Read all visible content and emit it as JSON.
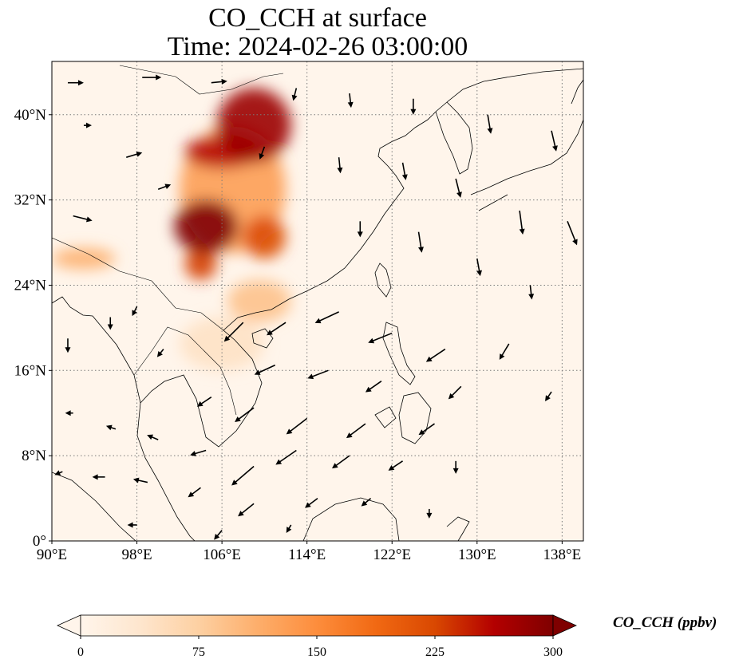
{
  "title": {
    "line1": "CO_CCH at surface",
    "line2": "Time: 2024-02-26 03:00:00"
  },
  "map": {
    "lon_range": [
      90,
      140
    ],
    "lat_range": [
      0,
      45
    ],
    "lon_ticks": [
      {
        "value": 90,
        "label": "90°E"
      },
      {
        "value": 98,
        "label": "98°E"
      },
      {
        "value": 106,
        "label": "106°E"
      },
      {
        "value": 114,
        "label": "114°E"
      },
      {
        "value": 122,
        "label": "122°E"
      },
      {
        "value": 130,
        "label": "130°E"
      },
      {
        "value": 138,
        "label": "138°E"
      }
    ],
    "lat_ticks": [
      {
        "value": 0,
        "label": "0°"
      },
      {
        "value": 8,
        "label": "8°N"
      },
      {
        "value": 16,
        "label": "16°N"
      },
      {
        "value": 24,
        "label": "24°N"
      },
      {
        "value": 32,
        "label": "32°N"
      },
      {
        "value": 40,
        "label": "40°N"
      }
    ],
    "gridlines": true,
    "background_color": "#fff5eb",
    "colormap": "OrRd",
    "plumes": [
      {
        "lon": 109.0,
        "lat": 39.0,
        "rlon": 3.5,
        "rlat": 3.5,
        "value": 280
      },
      {
        "lon": 106.0,
        "lat": 36.5,
        "rlon": 3.5,
        "rlat": 1.5,
        "value": 260
      },
      {
        "lon": 104.5,
        "lat": 29.5,
        "rlon": 3.0,
        "rlat": 2.5,
        "value": 300
      },
      {
        "lon": 110.0,
        "lat": 28.5,
        "rlon": 2.0,
        "rlat": 2.0,
        "value": 220
      },
      {
        "lon": 107.0,
        "lat": 33.0,
        "rlon": 5.0,
        "rlat": 6.0,
        "value": 130
      },
      {
        "lon": 104.0,
        "lat": 26.0,
        "rlon": 1.5,
        "rlat": 1.5,
        "value": 230
      },
      {
        "lon": 109.5,
        "lat": 22.5,
        "rlon": 3.0,
        "rlat": 2.0,
        "value": 90
      },
      {
        "lon": 93.0,
        "lat": 26.5,
        "rlon": 3.0,
        "rlat": 1.0,
        "value": 110
      },
      {
        "lon": 106.0,
        "lat": 18.5,
        "rlon": 4.0,
        "rlat": 2.5,
        "value": 45
      }
    ],
    "wind_vectors": [
      {
        "lon": 91.5,
        "lat": 43.0,
        "u": 1.0,
        "v": 0.0
      },
      {
        "lon": 98.5,
        "lat": 43.5,
        "u": 1.2,
        "v": 0.0
      },
      {
        "lon": 105.0,
        "lat": 43.0,
        "u": 1.0,
        "v": 0.1
      },
      {
        "lon": 113.0,
        "lat": 42.5,
        "u": -0.2,
        "v": -0.8
      },
      {
        "lon": 118.0,
        "lat": 42.0,
        "u": 0.1,
        "v": -0.9
      },
      {
        "lon": 124.0,
        "lat": 41.5,
        "u": 0.0,
        "v": -1.0
      },
      {
        "lon": 131.0,
        "lat": 40.0,
        "u": 0.2,
        "v": -1.2
      },
      {
        "lon": 137.0,
        "lat": 38.5,
        "u": 0.3,
        "v": -1.3
      },
      {
        "lon": 93.0,
        "lat": 39.0,
        "u": 0.5,
        "v": 0.0
      },
      {
        "lon": 97.0,
        "lat": 36.0,
        "u": 1.0,
        "v": 0.3
      },
      {
        "lon": 100.0,
        "lat": 33.0,
        "u": 0.8,
        "v": 0.3
      },
      {
        "lon": 110.0,
        "lat": 37.0,
        "u": -0.3,
        "v": -0.8
      },
      {
        "lon": 117.0,
        "lat": 36.0,
        "u": 0.1,
        "v": -1.0
      },
      {
        "lon": 123.0,
        "lat": 35.5,
        "u": 0.2,
        "v": -1.1
      },
      {
        "lon": 128.0,
        "lat": 34.0,
        "u": 0.3,
        "v": -1.2
      },
      {
        "lon": 134.0,
        "lat": 31.0,
        "u": 0.2,
        "v": -1.5
      },
      {
        "lon": 138.5,
        "lat": 30.0,
        "u": 0.6,
        "v": -1.5
      },
      {
        "lon": 119.0,
        "lat": 30.0,
        "u": 0.0,
        "v": -1.0
      },
      {
        "lon": 124.5,
        "lat": 29.0,
        "u": 0.2,
        "v": -1.3
      },
      {
        "lon": 130.0,
        "lat": 26.5,
        "u": 0.2,
        "v": -1.1
      },
      {
        "lon": 135.0,
        "lat": 24.0,
        "u": 0.1,
        "v": -0.9
      },
      {
        "lon": 92.0,
        "lat": 30.5,
        "u": 1.2,
        "v": -0.3
      },
      {
        "lon": 95.5,
        "lat": 21.0,
        "u": 0.0,
        "v": -0.8
      },
      {
        "lon": 91.5,
        "lat": 19.0,
        "u": 0.0,
        "v": -0.9
      },
      {
        "lon": 98.0,
        "lat": 22.0,
        "u": -0.3,
        "v": -0.6
      },
      {
        "lon": 100.5,
        "lat": 18.0,
        "u": -0.4,
        "v": -0.5
      },
      {
        "lon": 108.0,
        "lat": 20.5,
        "u": -1.2,
        "v": -1.2
      },
      {
        "lon": 112.0,
        "lat": 20.5,
        "u": -1.2,
        "v": -0.8
      },
      {
        "lon": 117.0,
        "lat": 21.5,
        "u": -1.5,
        "v": -0.7
      },
      {
        "lon": 122.0,
        "lat": 19.5,
        "u": -1.5,
        "v": -0.6
      },
      {
        "lon": 127.0,
        "lat": 18.0,
        "u": -1.2,
        "v": -0.8
      },
      {
        "lon": 133.0,
        "lat": 18.5,
        "u": -0.6,
        "v": -1.0
      },
      {
        "lon": 111.0,
        "lat": 16.5,
        "u": -1.3,
        "v": -0.6
      },
      {
        "lon": 116.0,
        "lat": 16.0,
        "u": -1.3,
        "v": -0.5
      },
      {
        "lon": 121.0,
        "lat": 15.0,
        "u": -1.0,
        "v": -0.7
      },
      {
        "lon": 128.5,
        "lat": 14.5,
        "u": -0.8,
        "v": -0.8
      },
      {
        "lon": 137.0,
        "lat": 14.0,
        "u": -0.4,
        "v": -0.6
      },
      {
        "lon": 105.0,
        "lat": 13.5,
        "u": -0.9,
        "v": -0.6
      },
      {
        "lon": 109.0,
        "lat": 12.5,
        "u": -1.2,
        "v": -0.9
      },
      {
        "lon": 114.0,
        "lat": 11.5,
        "u": -1.3,
        "v": -1.0
      },
      {
        "lon": 119.5,
        "lat": 11.0,
        "u": -1.2,
        "v": -0.9
      },
      {
        "lon": 126.0,
        "lat": 11.0,
        "u": -1.0,
        "v": -0.7
      },
      {
        "lon": 92.0,
        "lat": 12.0,
        "u": -0.5,
        "v": 0.0
      },
      {
        "lon": 96.0,
        "lat": 10.5,
        "u": -0.6,
        "v": 0.2
      },
      {
        "lon": 100.0,
        "lat": 9.5,
        "u": -0.7,
        "v": 0.3
      },
      {
        "lon": 104.5,
        "lat": 8.5,
        "u": -1.0,
        "v": -0.3
      },
      {
        "lon": 109.0,
        "lat": 7.0,
        "u": -1.4,
        "v": -1.2
      },
      {
        "lon": 113.0,
        "lat": 8.5,
        "u": -1.3,
        "v": -0.9
      },
      {
        "lon": 118.0,
        "lat": 8.0,
        "u": -1.1,
        "v": -0.8
      },
      {
        "lon": 123.0,
        "lat": 7.5,
        "u": -0.9,
        "v": -0.6
      },
      {
        "lon": 128.0,
        "lat": 7.5,
        "u": 0.0,
        "v": -0.8
      },
      {
        "lon": 91.0,
        "lat": 6.5,
        "u": -0.5,
        "v": -0.2
      },
      {
        "lon": 95.0,
        "lat": 6.0,
        "u": -0.8,
        "v": 0.0
      },
      {
        "lon": 99.0,
        "lat": 5.5,
        "u": -0.9,
        "v": 0.2
      },
      {
        "lon": 104.0,
        "lat": 5.0,
        "u": -0.8,
        "v": -0.6
      },
      {
        "lon": 109.0,
        "lat": 3.5,
        "u": -1.0,
        "v": -0.8
      },
      {
        "lon": 115.0,
        "lat": 4.0,
        "u": -0.8,
        "v": -0.6
      },
      {
        "lon": 120.0,
        "lat": 4.0,
        "u": -0.6,
        "v": -0.5
      },
      {
        "lon": 125.5,
        "lat": 3.0,
        "u": 0.0,
        "v": -0.6
      },
      {
        "lon": 98.0,
        "lat": 1.5,
        "u": -0.6,
        "v": 0.0
      },
      {
        "lon": 106.0,
        "lat": 1.0,
        "u": -0.5,
        "v": -0.6
      },
      {
        "lon": 112.5,
        "lat": 1.5,
        "u": -0.3,
        "v": -0.5
      }
    ]
  },
  "colorbar": {
    "min": 0,
    "max": 300,
    "extend": "both",
    "label": "CO_CCH (ppbv)",
    "ticks": [
      {
        "value": 0,
        "label": "0"
      },
      {
        "value": 75,
        "label": "75"
      },
      {
        "value": 150,
        "label": "150"
      },
      {
        "value": 225,
        "label": "225"
      },
      {
        "value": 300,
        "label": "300"
      }
    ],
    "colors": [
      "#fff5eb",
      "#fee6ce",
      "#fdd0a2",
      "#fdae6b",
      "#fd8d3c",
      "#f16913",
      "#d94801",
      "#b30000",
      "#7f0000"
    ]
  }
}
